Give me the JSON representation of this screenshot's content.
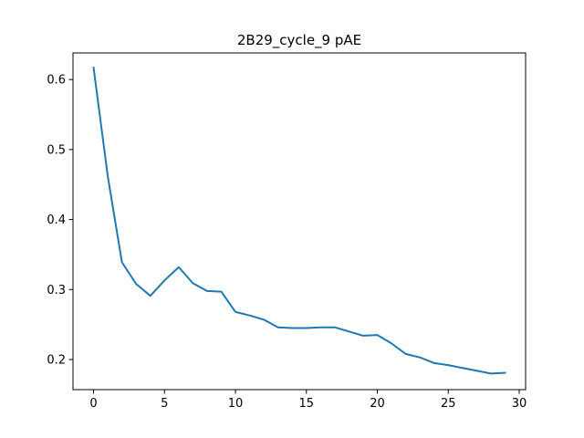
{
  "chart_data": {
    "type": "line",
    "title": "2B29_cycle_9 pAE",
    "xlabel": "",
    "ylabel": "",
    "xlim": [
      -1.45,
      30.45
    ],
    "ylim": [
      0.157,
      0.638
    ],
    "x_ticks": [
      0,
      5,
      10,
      15,
      20,
      25,
      30
    ],
    "y_ticks": [
      0.2,
      0.3,
      0.4,
      0.5,
      0.6
    ],
    "grid": false,
    "series": [
      {
        "color": "#1f77b4",
        "x": [
          0,
          1,
          2,
          3,
          4,
          5,
          6,
          7,
          8,
          9,
          10,
          11,
          12,
          13,
          14,
          15,
          16,
          17,
          18,
          19,
          20,
          21,
          22,
          23,
          24,
          25,
          26,
          27,
          28,
          29
        ],
        "y": [
          0.617,
          0.462,
          0.339,
          0.308,
          0.291,
          0.313,
          0.332,
          0.309,
          0.298,
          0.297,
          0.268,
          0.263,
          0.257,
          0.246,
          0.245,
          0.245,
          0.246,
          0.246,
          0.24,
          0.234,
          0.235,
          0.223,
          0.208,
          0.203,
          0.195,
          0.192,
          0.188,
          0.184,
          0.18,
          0.181
        ]
      }
    ]
  }
}
